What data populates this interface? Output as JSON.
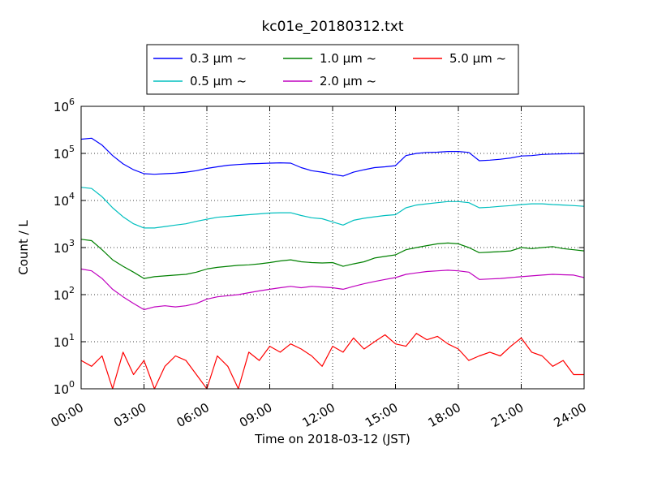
{
  "chart_data": {
    "type": "line",
    "title": "kc01e_20180312.txt",
    "xlabel": "Time on 2018-03-12 (JST)",
    "ylabel": "Count / L",
    "y_scale": "log",
    "xlim": [
      "00:00",
      "24:00"
    ],
    "ylim": [
      1,
      1000000
    ],
    "x_ticks": [
      "00:00",
      "03:00",
      "06:00",
      "09:00",
      "12:00",
      "15:00",
      "18:00",
      "21:00",
      "24:00"
    ],
    "y_ticks": [
      {
        "base": "10",
        "exp": "0"
      },
      {
        "base": "10",
        "exp": "1"
      },
      {
        "base": "10",
        "exp": "2"
      },
      {
        "base": "10",
        "exp": "3"
      },
      {
        "base": "10",
        "exp": "4"
      },
      {
        "base": "10",
        "exp": "5"
      },
      {
        "base": "10",
        "exp": "6"
      }
    ],
    "grid": true,
    "legend_position": "top-center, outside",
    "x_hours": [
      0,
      0.5,
      1,
      1.5,
      2,
      2.5,
      3,
      3.5,
      4,
      4.5,
      5,
      5.5,
      6,
      6.5,
      7,
      7.5,
      8,
      8.5,
      9,
      9.5,
      10,
      10.5,
      11,
      11.5,
      12,
      12.5,
      13,
      13.5,
      14,
      14.5,
      15,
      15.5,
      16,
      16.5,
      17,
      17.5,
      18,
      18.5,
      19,
      19.5,
      20,
      20.5,
      21,
      21.5,
      22,
      22.5,
      23,
      23.5,
      24
    ],
    "series": [
      {
        "name": "0.3 µm ~",
        "color": "#0000ff",
        "values": [
          200000,
          210000,
          150000,
          90000,
          60000,
          45000,
          37000,
          36000,
          37000,
          38000,
          40000,
          43000,
          48000,
          52000,
          56000,
          58000,
          60000,
          61000,
          62000,
          63000,
          62000,
          50000,
          43000,
          40000,
          36000,
          33000,
          40000,
          45000,
          50000,
          52000,
          55000,
          90000,
          100000,
          105000,
          106000,
          110000,
          110000,
          105000,
          70000,
          72000,
          75000,
          80000,
          88000,
          90000,
          95000,
          97000,
          98000,
          99000,
          100000
        ]
      },
      {
        "name": "0.5 µm ~",
        "color": "#00bfbf",
        "values": [
          19000,
          18000,
          12000,
          7000,
          4500,
          3200,
          2600,
          2600,
          2800,
          3000,
          3200,
          3600,
          4000,
          4400,
          4600,
          4800,
          5000,
          5200,
          5400,
          5500,
          5500,
          4800,
          4300,
          4100,
          3500,
          3000,
          3800,
          4200,
          4500,
          4800,
          5000,
          7000,
          8000,
          8500,
          9000,
          9500,
          9500,
          9000,
          7000,
          7200,
          7500,
          7800,
          8200,
          8500,
          8500,
          8200,
          8000,
          7800,
          7500
        ]
      },
      {
        "name": "1.0 µm ~",
        "color": "#008000",
        "values": [
          1500,
          1400,
          900,
          550,
          400,
          300,
          220,
          240,
          250,
          260,
          270,
          300,
          350,
          380,
          400,
          420,
          430,
          450,
          480,
          520,
          550,
          500,
          480,
          470,
          480,
          400,
          450,
          500,
          600,
          650,
          700,
          900,
          1000,
          1100,
          1200,
          1250,
          1200,
          1000,
          780,
          800,
          820,
          850,
          1000,
          950,
          1000,
          1050,
          950,
          900,
          850
        ]
      },
      {
        "name": "2.0 µm ~",
        "color": "#bf00bf",
        "values": [
          350,
          320,
          220,
          130,
          90,
          65,
          48,
          55,
          58,
          55,
          58,
          65,
          80,
          90,
          95,
          100,
          110,
          120,
          130,
          140,
          150,
          140,
          150,
          145,
          140,
          130,
          150,
          170,
          190,
          210,
          230,
          270,
          290,
          310,
          320,
          330,
          320,
          300,
          210,
          215,
          220,
          230,
          240,
          250,
          260,
          270,
          265,
          260,
          230
        ]
      },
      {
        "name": "5.0 µm ~",
        "color": "#ff0000",
        "values": [
          4,
          3,
          5,
          1,
          6,
          2,
          4,
          1,
          3,
          5,
          4,
          2,
          1,
          5,
          3,
          1,
          6,
          4,
          8,
          6,
          9,
          7,
          5,
          3,
          8,
          6,
          12,
          7,
          10,
          14,
          9,
          8,
          15,
          11,
          13,
          9,
          7,
          4,
          5,
          6,
          5,
          8,
          12,
          6,
          5,
          3,
          4,
          2,
          2
        ]
      }
    ]
  }
}
